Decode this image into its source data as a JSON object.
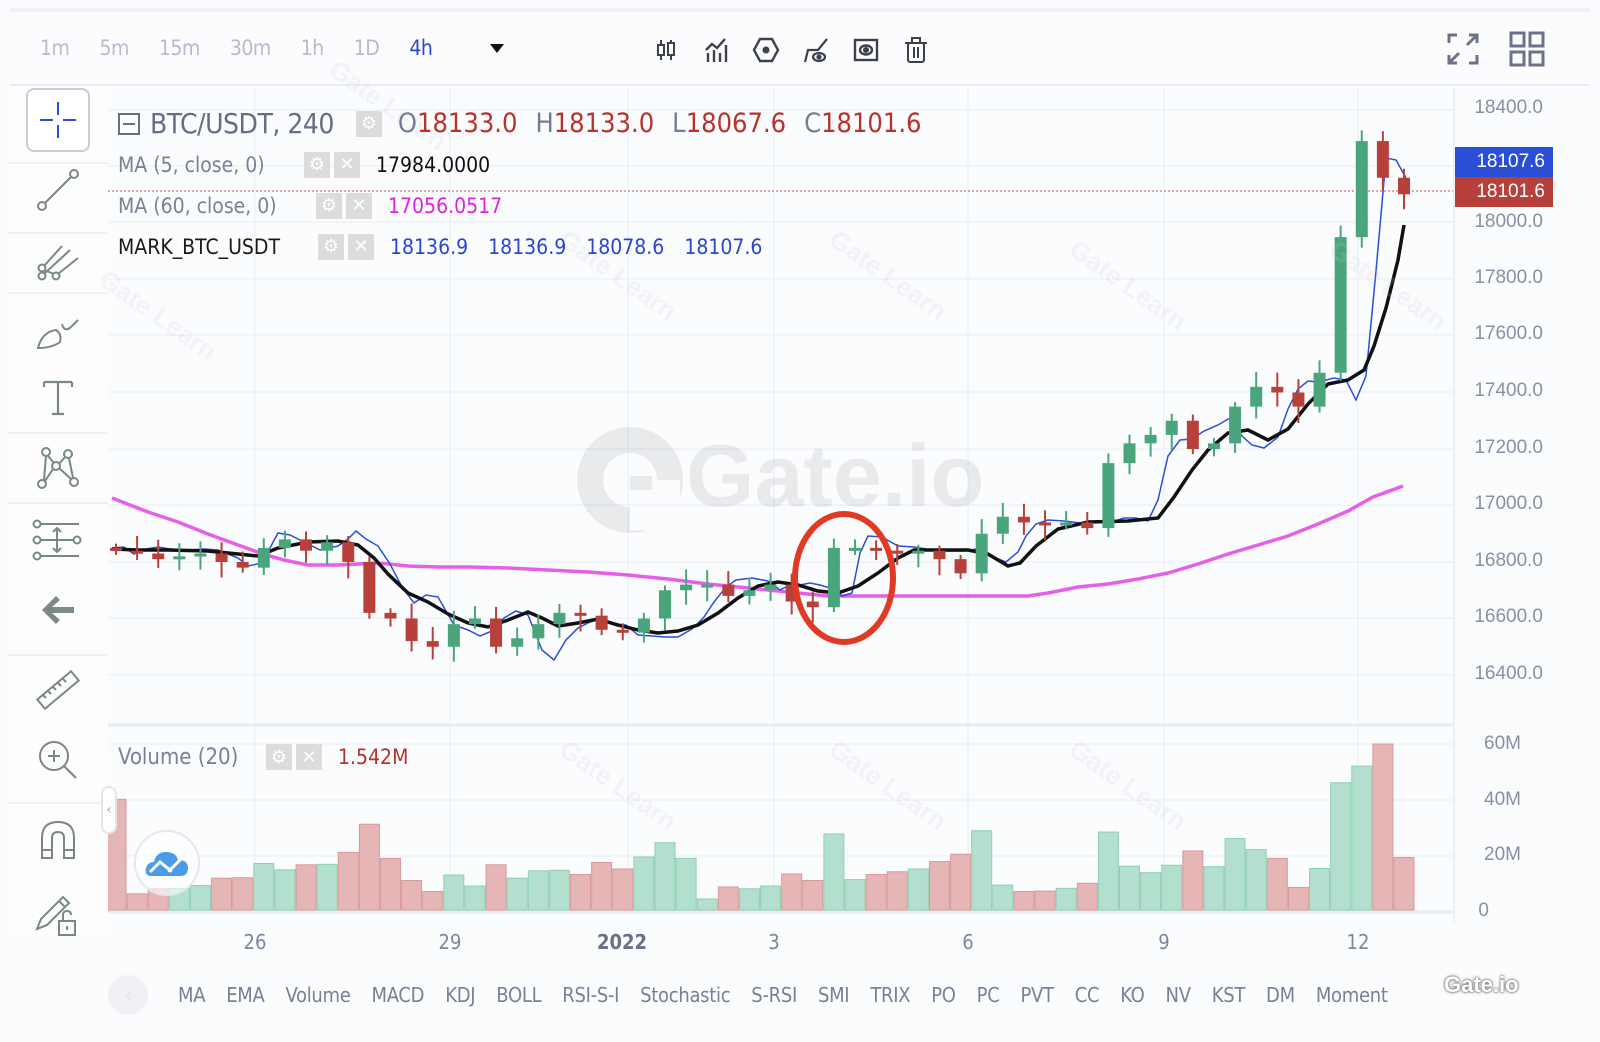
{
  "toolbar": {
    "intervals": [
      {
        "label": "1m",
        "active": false
      },
      {
        "label": "5m",
        "active": false
      },
      {
        "label": "15m",
        "active": false
      },
      {
        "label": "30m",
        "active": false
      },
      {
        "label": "1h",
        "active": false
      },
      {
        "label": "1D",
        "active": false
      },
      {
        "label": "4h",
        "active": true
      }
    ],
    "icons": [
      "candlestick-type-icon",
      "indicators-icon",
      "settings-hexagon-icon",
      "hide-drawings-icon",
      "visibility-icon",
      "delete-icon"
    ],
    "right_icons": [
      "fullscreen-icon",
      "layout-grid-icon"
    ]
  },
  "left_tools": [
    "crosshair-icon",
    "trend-line-icon",
    "pitchfork-icon",
    "brush-icon",
    "text-icon",
    "pattern-icon",
    "measure-range-icon",
    "back-arrow-icon",
    "ruler-icon",
    "zoom-in-icon",
    "magnet-icon",
    "lock-drawings-icon"
  ],
  "legend": {
    "symbol": "BTC/USDT, 240",
    "ohlc": [
      {
        "key": "O",
        "value": "18133.0"
      },
      {
        "key": "H",
        "value": "18133.0"
      },
      {
        "key": "L",
        "value": "18067.6"
      },
      {
        "key": "C",
        "value": "18101.6"
      }
    ],
    "indicators": [
      {
        "name": "MA (5, close, 0)",
        "values": [
          "17984.0000"
        ],
        "color": "#111111"
      },
      {
        "name": "MA (60, close, 0)",
        "values": [
          "17056.0517"
        ],
        "color": "#e040e6"
      },
      {
        "name": "MARK_BTC_USDT",
        "values": [
          "18136.9",
          "18136.9",
          "18078.6",
          "18107.6"
        ],
        "color": "#2a45d0"
      }
    ]
  },
  "price_axis": {
    "ticks": [
      "18400.0",
      "18000.0",
      "17800.0",
      "17600.0",
      "17400.0",
      "17200.0",
      "17000.0",
      "16800.0",
      "16600.0",
      "16400.0"
    ],
    "mark_tag": "18107.6",
    "last_tag": "18101.6"
  },
  "volume": {
    "label": "Volume (20)",
    "value": "1.542M",
    "ticks": [
      "60M",
      "40M",
      "20M",
      "0"
    ]
  },
  "time_axis": [
    "26",
    "29",
    "2022",
    "3",
    "6",
    "9",
    "12"
  ],
  "indicator_bar": [
    "MA",
    "EMA",
    "Volume",
    "MACD",
    "KDJ",
    "BOLL",
    "RSI-S-I",
    "Stochastic",
    "S-RSI",
    "SMI",
    "TRIX",
    "PO",
    "PC",
    "PVT",
    "CC",
    "KO",
    "NV",
    "KST",
    "DM",
    "Moment"
  ],
  "watermark": "Gate.io",
  "watermark_small": "Gate Learn",
  "brand_corner": "Gate.io",
  "colors": {
    "up": "#4aa57c",
    "down": "#b8403a",
    "vol_up": "#b3dfcf",
    "vol_down": "#e6b5b5",
    "ma5": "#111111",
    "ma60": "#e75fe9",
    "mark": "#2a4fd6",
    "accent": "#2f46c8",
    "annotation": "#e03a24"
  },
  "chart_data": {
    "type": "candlestick",
    "title": "BTC/USDT, 240",
    "xlabel": "",
    "ylabel": "",
    "ylim": [
      16300,
      18450
    ],
    "grid": true,
    "x_ticks": [
      "26",
      "29",
      "2022",
      "3",
      "6",
      "9",
      "12"
    ],
    "series": [
      {
        "name": "BTC/USDT close (approx)",
        "values": [
          16840,
          16830,
          16810,
          16820,
          16830,
          16800,
          16780,
          16850,
          16880,
          16840,
          16870,
          16800,
          16620,
          16600,
          16520,
          16500,
          16580,
          16600,
          16500,
          16530,
          16580,
          16620,
          16610,
          16560,
          16550,
          16600,
          16700,
          16720,
          16720,
          16680,
          16700,
          16720,
          16660,
          16640,
          16850,
          16850,
          16840,
          16830,
          16840,
          16810,
          16760,
          16900,
          16960,
          16940,
          16930,
          16940,
          16920,
          17150,
          17220,
          17250,
          17300,
          17200,
          17220,
          17350,
          17420,
          17400,
          17350,
          17470,
          17950,
          18290,
          18160,
          18101.6
        ]
      },
      {
        "name": "MA (5, close, 0)",
        "last": 17984.0
      },
      {
        "name": "MA (60, close, 0)",
        "last": 17056.0517
      },
      {
        "name": "MARK_BTC_USDT",
        "ohlc": [
          18136.9,
          18136.9,
          18078.6,
          18107.6
        ]
      }
    ],
    "volume": {
      "ylim": [
        0,
        60000000
      ],
      "ticks": [
        "0",
        "20M",
        "40M",
        "60M"
      ],
      "last": "1.542M"
    },
    "annotations": [
      "red circle around the breakout candle near Jan 4 (~16650 → 16850)"
    ]
  }
}
